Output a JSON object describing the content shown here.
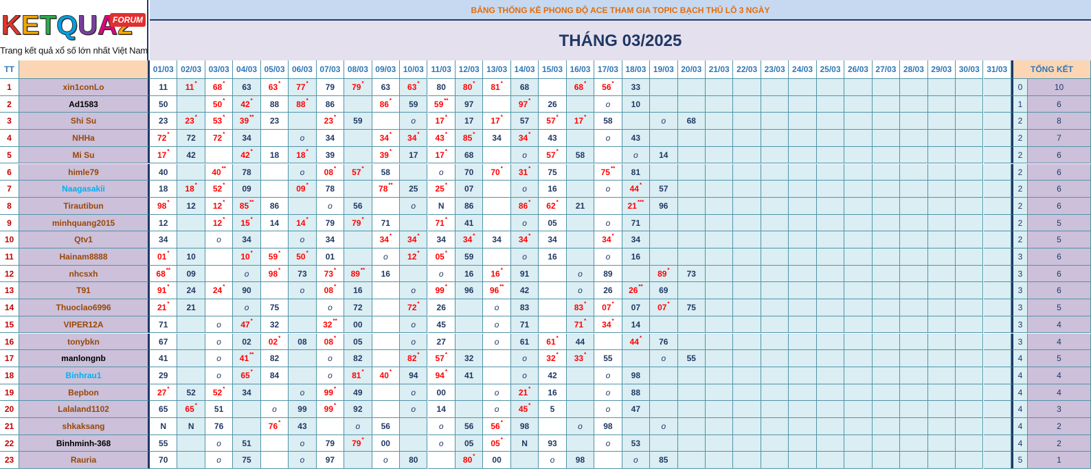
{
  "logo": {
    "letters": [
      "K",
      "E",
      "T",
      "Q",
      "U",
      "A",
      "2"
    ],
    "letter_colors": [
      "#e63329",
      "#f0a400",
      "#2fa84f",
      "#00a0e3",
      "#7b3fa0",
      "#e6007e",
      "#f7a700"
    ],
    "badge": "FORUM",
    "tagline": "Trang kết quả xổ số lớn nhất Việt Nam"
  },
  "title": "BẢNG THỐNG KÊ PHONG ĐỘ ACE THAM GIA TOPIC BẠCH THỦ LÔ 3 NGÀY",
  "month": "THÁNG 03/2025",
  "header": {
    "tt": "TT",
    "total": "TỔNG KẾT"
  },
  "days": [
    "01/03",
    "02/03",
    "03/03",
    "04/03",
    "05/03",
    "06/03",
    "07/03",
    "08/03",
    "09/03",
    "10/03",
    "11/03",
    "12/03",
    "13/03",
    "14/03",
    "15/03",
    "16/03",
    "17/03",
    "18/03",
    "19/03",
    "20/03",
    "21/03",
    "22/03",
    "23/03",
    "24/03",
    "25/03",
    "26/03",
    "27/03",
    "28/03",
    "29/03",
    "30/03",
    "31/03"
  ],
  "colors": {
    "brown": "#984807",
    "black": "#000000",
    "blue": "#00b0f0",
    "hit": "#ff0000",
    "normal": "#1f3864"
  },
  "rows": [
    {
      "tt": "1",
      "name": "xin1conLo",
      "nc": "brown",
      "t1": "0",
      "t2": "10",
      "cells": [
        "11",
        "11*",
        "68*",
        "63",
        "63*",
        "77*",
        "79",
        "79*",
        "63",
        "63*",
        "80",
        "80*",
        "81*",
        "68",
        "",
        "68*",
        "56*",
        "33",
        "",
        "",
        "",
        "",
        "",
        "",
        "",
        "",
        "",
        "",
        "",
        "",
        ""
      ]
    },
    {
      "tt": "2",
      "name": "Ad1583",
      "nc": "black",
      "t1": "1",
      "t2": "6",
      "cells": [
        "50",
        "",
        "50*",
        "42*",
        "88",
        "88*",
        "86",
        "",
        "86*",
        "59",
        "59**",
        "97",
        "",
        "97*",
        "26",
        "",
        "o",
        "10",
        "",
        "",
        "",
        "",
        "",
        "",
        "",
        "",
        "",
        "",
        "",
        "",
        ""
      ]
    },
    {
      "tt": "3",
      "name": "Shi Su",
      "nc": "brown",
      "t1": "2",
      "t2": "8",
      "cells": [
        "23",
        "23*",
        "53*",
        "39**",
        "23",
        "",
        "23*",
        "59",
        "",
        "o",
        "17*",
        "17",
        "17*",
        "57",
        "57*",
        "17*",
        "58",
        "",
        "o",
        "68",
        "",
        "",
        "",
        "",
        "",
        "",
        "",
        "",
        "",
        "",
        ""
      ]
    },
    {
      "tt": "4",
      "name": "NHHa",
      "nc": "brown",
      "t1": "2",
      "t2": "7",
      "cells": [
        "72*",
        "72",
        "72*",
        "34",
        "",
        "o",
        "34",
        "",
        "34*",
        "34*",
        "43*",
        "85*",
        "34",
        "34*",
        "43",
        "",
        "o",
        "43",
        "",
        "",
        "",
        "",
        "",
        "",
        "",
        "",
        "",
        "",
        "",
        "",
        ""
      ]
    },
    {
      "tt": "5",
      "name": "Mi Su",
      "nc": "brown",
      "t1": "2",
      "t2": "6",
      "cells": [
        "17*",
        "42",
        "",
        "42*",
        "18",
        "18*",
        "39",
        "",
        "39*",
        "17",
        "17*",
        "68",
        "",
        "o",
        "57*",
        "58",
        "",
        "o",
        "14",
        "",
        "",
        "",
        "",
        "",
        "",
        "",
        "",
        "",
        "",
        "",
        ""
      ]
    },
    {
      "tt": "6",
      "name": "himle79",
      "nc": "brown",
      "t1": "2",
      "t2": "6",
      "cells": [
        "40",
        "",
        "40**",
        "78",
        "",
        "o",
        "08*",
        "57*",
        "58",
        "",
        "o",
        "70",
        "70*",
        "31*",
        "75",
        "",
        "75**",
        "81",
        "",
        "",
        "",
        "",
        "",
        "",
        "",
        "",
        "",
        "",
        "",
        "",
        ""
      ]
    },
    {
      "tt": "7",
      "name": "Naagasakii",
      "nc": "blue",
      "t1": "2",
      "t2": "6",
      "cells": [
        "18",
        "18*",
        "52*",
        "09",
        "",
        "09*",
        "78",
        "",
        "78**",
        "25",
        "25*",
        "07",
        "",
        "o",
        "16",
        "",
        "o",
        "44*",
        "57",
        "",
        "",
        "",
        "",
        "",
        "",
        "",
        "",
        "",
        "",
        "",
        ""
      ]
    },
    {
      "tt": "8",
      "name": "Tirautibun",
      "nc": "brown",
      "t1": "2",
      "t2": "6",
      "cells": [
        "98*",
        "12",
        "12*",
        "85**",
        "86",
        "",
        "o",
        "56",
        "",
        "o",
        "N",
        "86",
        "",
        "86*",
        "62*",
        "21",
        "",
        "21***",
        "96",
        "",
        "",
        "",
        "",
        "",
        "",
        "",
        "",
        "",
        "",
        "",
        ""
      ]
    },
    {
      "tt": "9",
      "name": "minhquang2015",
      "nc": "brown",
      "t1": "2",
      "t2": "5",
      "cells": [
        "12",
        "",
        "12*",
        "15*",
        "14",
        "14*",
        "79",
        "79*",
        "71",
        "",
        "71*",
        "41",
        "",
        "o",
        "05",
        "",
        "o",
        "71",
        "",
        "",
        "",
        "",
        "",
        "",
        "",
        "",
        "",
        "",
        "",
        "",
        ""
      ]
    },
    {
      "tt": "10",
      "name": "Qtv1",
      "nc": "brown",
      "t1": "2",
      "t2": "5",
      "cells": [
        "34",
        "",
        "o",
        "34",
        "",
        "o",
        "34",
        "",
        "34*",
        "34*",
        "34",
        "34*",
        "34",
        "34*",
        "34",
        "",
        "34*",
        "34",
        "",
        "",
        "",
        "",
        "",
        "",
        "",
        "",
        "",
        "",
        "",
        "",
        ""
      ]
    },
    {
      "tt": "11",
      "name": "Hainam8888",
      "nc": "brown",
      "t1": "3",
      "t2": "6",
      "cells": [
        "01*",
        "10",
        "",
        "10*",
        "59*",
        "50*",
        "01",
        "",
        "o",
        "12*",
        "05*",
        "59",
        "",
        "o",
        "16",
        "",
        "o",
        "16",
        "",
        "",
        "",
        "",
        "",
        "",
        "",
        "",
        "",
        "",
        "",
        "",
        ""
      ]
    },
    {
      "tt": "12",
      "name": "nhcsxh",
      "nc": "brown",
      "t1": "3",
      "t2": "6",
      "cells": [
        "68**",
        "09",
        "",
        "o",
        "98*",
        "73",
        "73*",
        "89**",
        "16",
        "",
        "o",
        "16",
        "16*",
        "91",
        "",
        "o",
        "89",
        "",
        "89*",
        "73",
        "",
        "",
        "",
        "",
        "",
        "",
        "",
        "",
        "",
        "",
        ""
      ]
    },
    {
      "tt": "13",
      "name": "T91",
      "nc": "brown",
      "t1": "3",
      "t2": "6",
      "cells": [
        "91*",
        "24",
        "24*",
        "90",
        "",
        "o",
        "08*",
        "16",
        "",
        "o",
        "99*",
        "96",
        "96**",
        "42",
        "",
        "o",
        "26",
        "26**",
        "69",
        "",
        "",
        "",
        "",
        "",
        "",
        "",
        "",
        "",
        "",
        "",
        ""
      ]
    },
    {
      "tt": "14",
      "name": "Thuoclao6996",
      "nc": "brown",
      "t1": "3",
      "t2": "5",
      "cells": [
        "21*",
        "21",
        "",
        "o",
        "75",
        "",
        "o",
        "72",
        "",
        "72*",
        "26",
        "",
        "o",
        "83",
        "",
        "83*",
        "07*",
        "07",
        "07*",
        "75",
        "",
        "",
        "",
        "",
        "",
        "",
        "",
        "",
        "",
        "",
        ""
      ]
    },
    {
      "tt": "15",
      "name": "VIPER12A",
      "nc": "brown",
      "t1": "3",
      "t2": "4",
      "cells": [
        "71",
        "",
        "o",
        "47*",
        "32",
        "",
        "32**",
        "00",
        "",
        "o",
        "45",
        "",
        "o",
        "71",
        "",
        "71*",
        "34*",
        "14",
        "",
        "",
        "",
        "",
        "",
        "",
        "",
        "",
        "",
        "",
        "",
        "",
        ""
      ]
    },
    {
      "tt": "16",
      "name": "tonybkn",
      "nc": "brown",
      "t1": "3",
      "t2": "4",
      "cells": [
        "67",
        "",
        "o",
        "02",
        "02*",
        "08",
        "08*",
        "05",
        "",
        "o",
        "27",
        "",
        "o",
        "61",
        "61*",
        "44",
        "",
        "44*",
        "76",
        "",
        "",
        "",
        "",
        "",
        "",
        "",
        "",
        "",
        "",
        "",
        ""
      ]
    },
    {
      "tt": "17",
      "name": "manlongnb",
      "nc": "black",
      "t1": "4",
      "t2": "5",
      "cells": [
        "41",
        "",
        "o",
        "41**",
        "82",
        "",
        "o",
        "82",
        "",
        "82*",
        "57*",
        "32",
        "",
        "o",
        "32*",
        "33*",
        "55",
        "",
        "o",
        "55",
        "",
        "",
        "",
        "",
        "",
        "",
        "",
        "",
        "",
        "",
        ""
      ]
    },
    {
      "tt": "18",
      "name": "Binhrau1",
      "nc": "blue",
      "t1": "4",
      "t2": "4",
      "cells": [
        "29",
        "",
        "o",
        "65*",
        "84",
        "",
        "o",
        "81*",
        "40*",
        "94",
        "94*",
        "41",
        "",
        "o",
        "42",
        "",
        "o",
        "98",
        "",
        "",
        "",
        "",
        "",
        "",
        "",
        "",
        "",
        "",
        "",
        "",
        ""
      ]
    },
    {
      "tt": "19",
      "name": "Bepbon",
      "nc": "brown",
      "t1": "4",
      "t2": "4",
      "cells": [
        "27*",
        "52",
        "52*",
        "34",
        "",
        "o",
        "99*",
        "49",
        "",
        "o",
        "00",
        "",
        "o",
        "21*",
        "16",
        "",
        "o",
        "88",
        "",
        "",
        "",
        "",
        "",
        "",
        "",
        "",
        "",
        "",
        "",
        "",
        ""
      ]
    },
    {
      "tt": "20",
      "name": "Lalaland1102",
      "nc": "brown",
      "t1": "4",
      "t2": "3",
      "cells": [
        "65",
        "65*",
        "51",
        "",
        "o",
        "99",
        "99*",
        "92",
        "",
        "o",
        "14",
        "",
        "o",
        "45*",
        "5",
        "",
        "o",
        "47",
        "",
        "",
        "",
        "",
        "",
        "",
        "",
        "",
        "",
        "",
        "",
        "",
        ""
      ]
    },
    {
      "tt": "21",
      "name": "shkaksang",
      "nc": "brown",
      "t1": "4",
      "t2": "2",
      "cells": [
        "N",
        "N",
        "76",
        "",
        "76*",
        "43",
        "",
        "o",
        "56",
        "",
        "o",
        "56",
        "56*",
        "98",
        "",
        "o",
        "98",
        "",
        "o",
        "",
        "",
        "",
        "",
        "",
        "",
        "",
        "",
        "",
        "",
        "",
        ""
      ]
    },
    {
      "tt": "22",
      "name": "Binhminh-368",
      "nc": "black",
      "t1": "4",
      "t2": "2",
      "cells": [
        "55",
        "",
        "o",
        "51",
        "",
        "o",
        "79",
        "79*",
        "00",
        "",
        "o",
        "05",
        "05*",
        "N",
        "93",
        "",
        "o",
        "53",
        "",
        "",
        "",
        "",
        "",
        "",
        "",
        "",
        "",
        "",
        "",
        "",
        ""
      ]
    },
    {
      "tt": "23",
      "name": "Rauria",
      "nc": "brown",
      "t1": "5",
      "t2": "1",
      "cells": [
        "70",
        "",
        "o",
        "75",
        "",
        "o",
        "97",
        "",
        "o",
        "80",
        "",
        "80*",
        "00",
        "",
        "o",
        "98",
        "",
        "o",
        "85",
        "",
        "",
        "",
        "",
        "",
        "",
        "",
        "",
        "",
        "",
        "",
        ""
      ]
    }
  ]
}
